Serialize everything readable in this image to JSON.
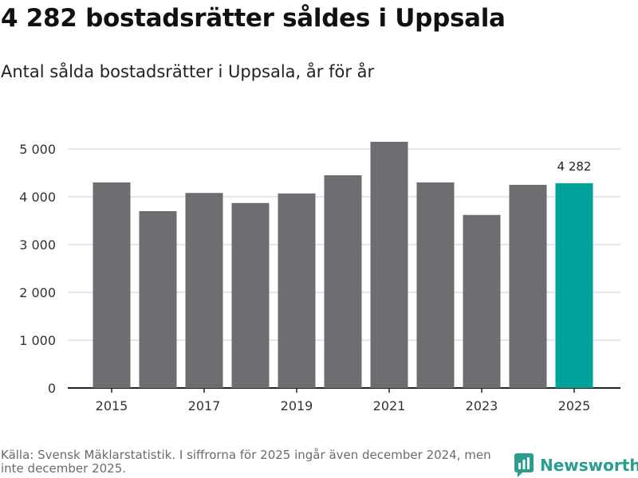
{
  "title": "4 282 bostadsrätter såldes i Uppsala",
  "subtitle": "Antal sålda bostadsrätter i Uppsala, år för år",
  "source": "Källa: Svensk Mäklarstatistik. I siffrorna för 2025 ingår även december 2024, men inte december 2025.",
  "brand": {
    "name": "Newsworthy",
    "icon": "newsworthy-logo-icon"
  },
  "colors": {
    "bar": "#6e6d72",
    "highlight": "#00a39a",
    "grid": "#dddddd",
    "axis": "#222222",
    "brand": "#2a9d8f"
  },
  "chart_data": {
    "type": "bar",
    "title": "Antal sålda bostadsrätter i Uppsala, år för år",
    "xlabel": "",
    "ylabel": "",
    "categories": [
      "2015",
      "2016",
      "2017",
      "2018",
      "2019",
      "2020",
      "2021",
      "2022",
      "2023",
      "2024",
      "2025"
    ],
    "values": [
      4300,
      3700,
      4080,
      3870,
      4070,
      4450,
      5150,
      4300,
      3620,
      4250,
      4282
    ],
    "highlight_index": 10,
    "data_labels": [
      {
        "index": 10,
        "text": "4 282"
      }
    ],
    "ylim": [
      0,
      5000
    ],
    "yticks": [
      0,
      1000,
      2000,
      3000,
      4000,
      5000
    ],
    "ytick_labels": [
      "0",
      "1 000",
      "2 000",
      "3 000",
      "4 000",
      "5 000"
    ],
    "xtick_labels": [
      "2015",
      "2017",
      "2019",
      "2021",
      "2023",
      "2025"
    ],
    "grid": true
  }
}
